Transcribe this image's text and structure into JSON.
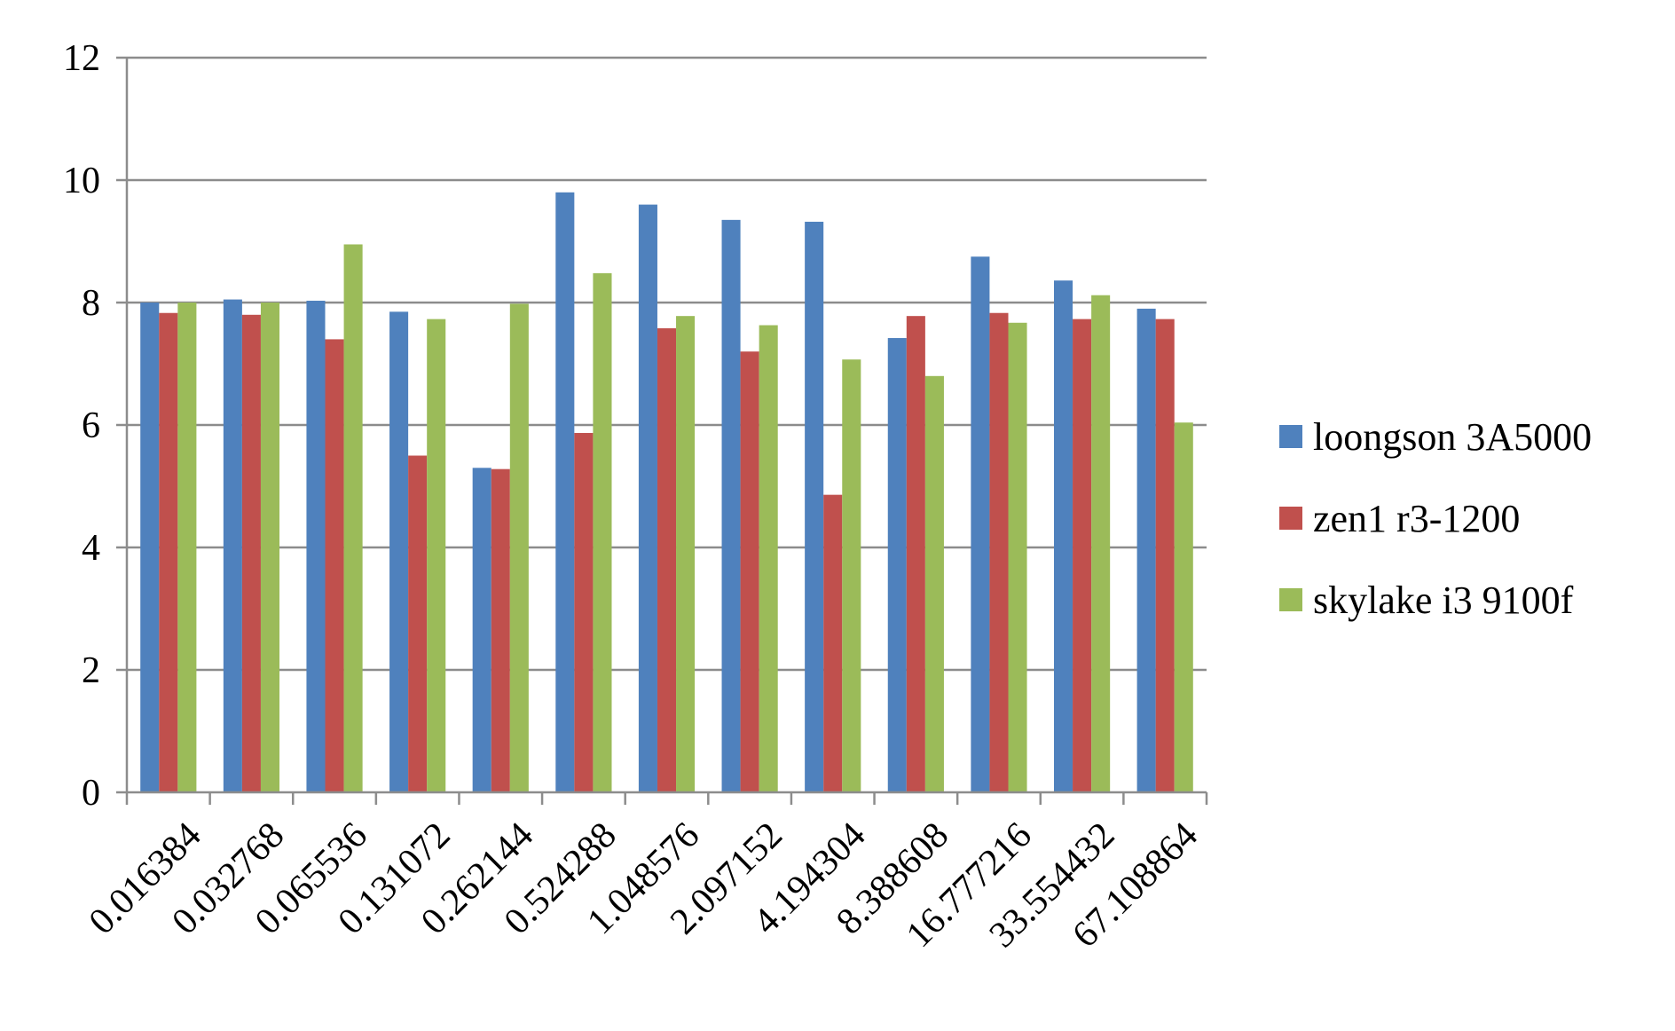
{
  "chart_data": {
    "type": "bar",
    "title": "",
    "xlabel": "",
    "ylabel": "",
    "ylim": [
      0,
      12
    ],
    "yticks": [
      0,
      2,
      4,
      6,
      8,
      10,
      12
    ],
    "grid": true,
    "legend_position": "right",
    "categories": [
      "0.016384",
      "0.032768",
      "0.065536",
      "0.131072",
      "0.262144",
      "0.524288",
      "1.048576",
      "2.097152",
      "4.194304",
      "8.388608",
      "16.777216",
      "33.554432",
      "67.108864"
    ],
    "series": [
      {
        "name": "loongson 3A5000",
        "color": "#4f81bd",
        "values": [
          8.0,
          8.05,
          8.03,
          7.85,
          5.3,
          9.8,
          9.6,
          9.35,
          9.32,
          7.42,
          8.75,
          8.36,
          7.9
        ]
      },
      {
        "name": "zen1 r3-1200",
        "color": "#c0504d",
        "values": [
          7.83,
          7.8,
          7.4,
          5.5,
          5.28,
          5.87,
          7.58,
          7.2,
          4.86,
          7.78,
          7.83,
          7.73,
          7.73
        ]
      },
      {
        "name": "skylake i3 9100f",
        "color": "#9bbb59",
        "values": [
          8.0,
          8.0,
          8.95,
          7.73,
          7.98,
          8.48,
          7.78,
          7.63,
          7.07,
          6.8,
          7.67,
          8.12,
          6.04
        ]
      }
    ]
  }
}
